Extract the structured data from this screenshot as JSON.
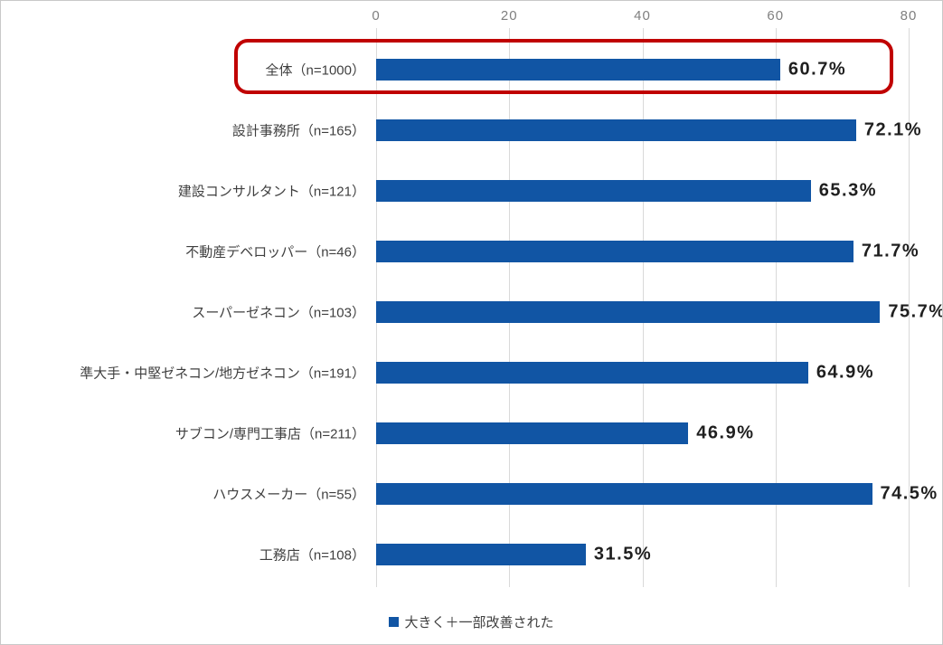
{
  "chart_data": {
    "type": "bar",
    "orientation": "horizontal",
    "title": "",
    "categories": [
      "全体（n=1000）",
      "設計事務所（n=165）",
      "建設コンサルタント（n=121）",
      "不動産デベロッパー（n=46）",
      "スーパーゼネコン（n=103）",
      "準大手・中堅ゼネコン/地方ゼネコン（n=191）",
      "サブコン/専門工事店（n=211）",
      "ハウスメーカー（n=55）",
      "工務店（n=108）"
    ],
    "values": [
      60.7,
      72.1,
      65.3,
      71.7,
      75.7,
      64.9,
      46.9,
      74.5,
      31.5
    ],
    "value_labels": [
      "60.7%",
      "72.1%",
      "65.3%",
      "71.7%",
      "75.7%",
      "64.9%",
      "46.9%",
      "74.5%",
      "31.5%"
    ],
    "x_ticks": [
      0,
      20,
      40,
      60,
      80
    ],
    "x_tick_labels": [
      "0",
      "20",
      "40",
      "60",
      "80"
    ],
    "xlim": [
      0,
      80
    ],
    "grid": true,
    "legend": [
      "大きく＋一部改善された"
    ],
    "legend_position": "bottom",
    "series_name": "大きく＋一部改善された",
    "bar_color": "#1155a4",
    "highlight_border_color": "#c00000",
    "highlighted_category_index": 0
  }
}
